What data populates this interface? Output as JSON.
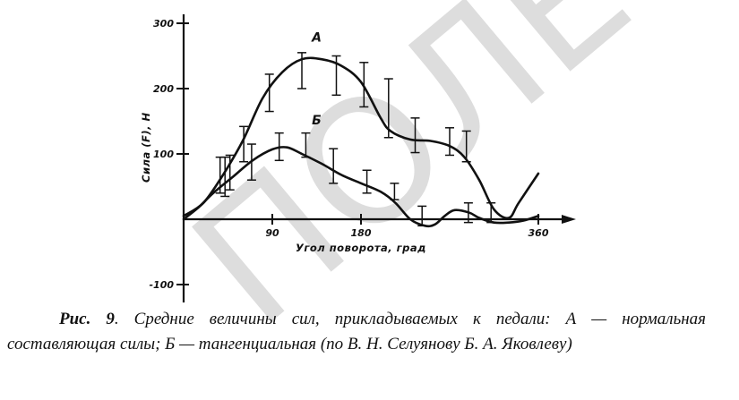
{
  "watermark": "ПОЛЕ",
  "chart_data": {
    "type": "line",
    "xlabel": "Угол поворота, град",
    "ylabel": "Сила (F), Н",
    "xlim": [
      0,
      360
    ],
    "ylim": [
      -100,
      300
    ],
    "x_ticks": [
      90,
      180,
      360
    ],
    "x_tick_labels": [
      "90",
      "180",
      "360"
    ],
    "y_ticks": [
      -100,
      100,
      200,
      300
    ],
    "y_tick_labels": [
      "-100",
      "100",
      "200",
      "300"
    ],
    "grid": false,
    "series": [
      {
        "name": "А",
        "curve": {
          "x": [
            0,
            20,
            40,
            60,
            80,
            100,
            120,
            140,
            160,
            180,
            200,
            210,
            230,
            250,
            270,
            285,
            300,
            315,
            330,
            340,
            360
          ],
          "y": [
            5,
            25,
            68,
            120,
            185,
            225,
            245,
            245,
            235,
            210,
            155,
            135,
            122,
            120,
            112,
            95,
            60,
            15,
            2,
            25,
            70
          ]
        },
        "error_bars": [
          {
            "x": 42,
            "y": 64,
            "low": 35,
            "high": 95
          },
          {
            "x": 61,
            "y": 115,
            "low": 88,
            "high": 142
          },
          {
            "x": 87,
            "y": 194,
            "low": 165,
            "high": 222
          },
          {
            "x": 120,
            "y": 235,
            "low": 200,
            "high": 255
          },
          {
            "x": 155,
            "y": 225,
            "low": 190,
            "high": 250
          },
          {
            "x": 183,
            "y": 205,
            "low": 172,
            "high": 240
          },
          {
            "x": 208,
            "y": 170,
            "low": 125,
            "high": 215
          },
          {
            "x": 235,
            "y": 125,
            "low": 102,
            "high": 155
          },
          {
            "x": 270,
            "y": 125,
            "low": 98,
            "high": 140
          },
          {
            "x": 287,
            "y": 110,
            "low": 88,
            "high": 135
          }
        ]
      },
      {
        "name": "Б",
        "curve": {
          "x": [
            0,
            15,
            30,
            50,
            70,
            90,
            105,
            120,
            140,
            160,
            180,
            200,
            215,
            230,
            245,
            255,
            265,
            275,
            290,
            300,
            315,
            330,
            345,
            360
          ],
          "y": [
            0,
            18,
            40,
            65,
            90,
            107,
            110,
            100,
            85,
            68,
            55,
            42,
            25,
            0,
            -10,
            -8,
            5,
            14,
            10,
            2,
            -5,
            -5,
            -2,
            5
          ]
        },
        "error_bars": [
          {
            "x": 37,
            "y": 58,
            "low": 40,
            "high": 95
          },
          {
            "x": 47,
            "y": 70,
            "low": 45,
            "high": 98
          },
          {
            "x": 69,
            "y": 90,
            "low": 60,
            "high": 115
          },
          {
            "x": 97,
            "y": 108,
            "low": 90,
            "high": 132
          },
          {
            "x": 124,
            "y": 110,
            "low": 95,
            "high": 132
          },
          {
            "x": 152,
            "y": 78,
            "low": 55,
            "high": 108
          },
          {
            "x": 186,
            "y": 55,
            "low": 40,
            "high": 75
          },
          {
            "x": 214,
            "y": 42,
            "low": 30,
            "high": 55
          },
          {
            "x": 242,
            "y": 0,
            "low": -10,
            "high": 20
          },
          {
            "x": 289,
            "y": 10,
            "low": -5,
            "high": 25
          },
          {
            "x": 312,
            "y": 5,
            "low": -5,
            "high": 25
          }
        ]
      }
    ]
  },
  "caption": {
    "prefix": "Рис. 9",
    "text": ". Средние величины сил, прикладываемых к педали: А — нормальная составляющая силы; Б — тангенциальная (по В. Н. Селуянову Б. А. Яковлеву)"
  }
}
